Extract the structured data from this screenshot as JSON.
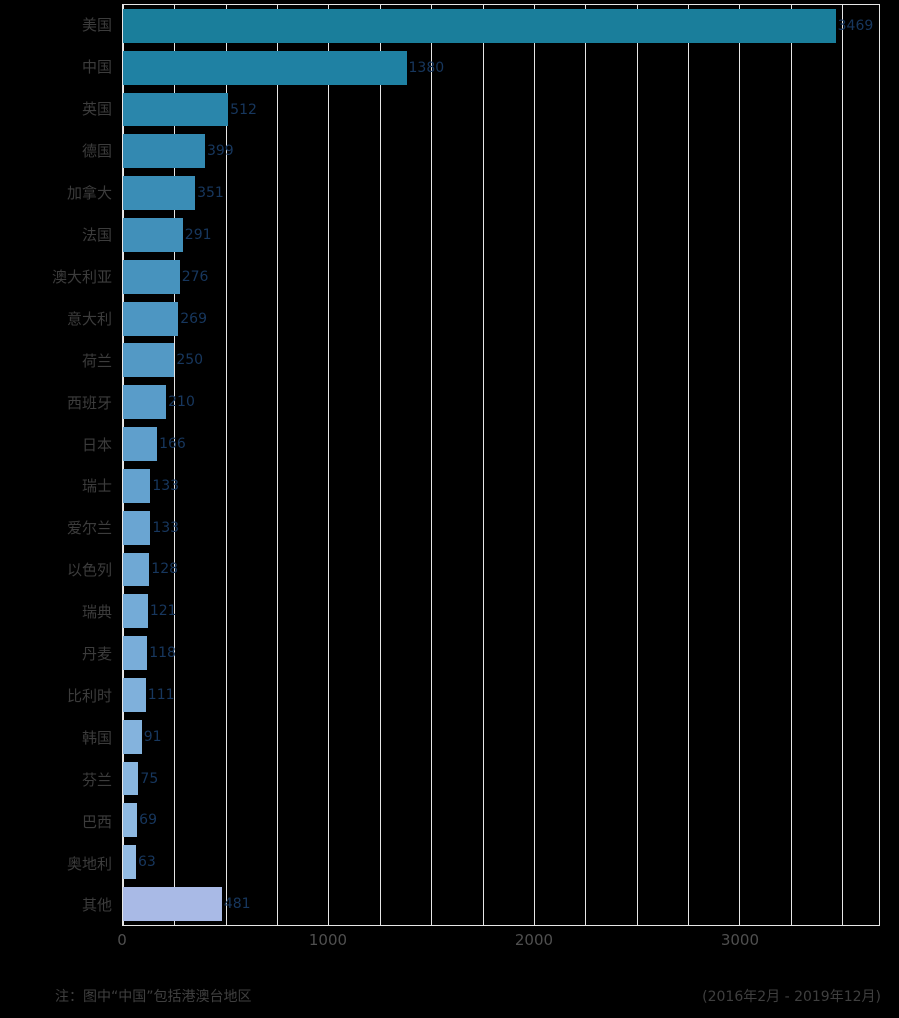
{
  "chart_data": {
    "type": "bar",
    "orientation": "horizontal",
    "title": "",
    "xlabel": "",
    "ylabel": "",
    "grid": true,
    "xlim": [
      0,
      3680
    ],
    "x_major_ticks": [
      "0",
      "1000",
      "2000",
      "3000"
    ],
    "x_major_tick_values": [
      0,
      1000,
      2000,
      3000
    ],
    "x_minor_step": 250,
    "categories": [
      "美国",
      "中国",
      "英国",
      "德国",
      "加拿大",
      "法国",
      "澳大利亚",
      "意大利",
      "荷兰",
      "西班牙",
      "日本",
      "瑞士",
      "爱尔兰",
      "以色列",
      "瑞典",
      "丹麦",
      "比利时",
      "韩国",
      "芬兰",
      "巴西",
      "奥地利",
      "其他"
    ],
    "values": [
      3469,
      1380,
      512,
      399,
      351,
      291,
      276,
      269,
      250,
      210,
      166,
      133,
      133,
      128,
      121,
      118,
      111,
      91,
      75,
      69,
      63,
      481
    ],
    "bar_colors": [
      "#1A7E9B",
      "#1F81A3",
      "#2A86AB",
      "#3389B1",
      "#3A8DB6",
      "#4190BA",
      "#4793BE",
      "#4D96C2",
      "#5399C5",
      "#599CC9",
      "#5F9FCC",
      "#64A2CF",
      "#6AA5D2",
      "#6FA8D4",
      "#74ABD7",
      "#79ADD9",
      "#7FB0DB",
      "#84B3DD",
      "#89B6DF",
      "#8EB9E1",
      "#93BBE3",
      "#A9BAE6"
    ]
  },
  "notes": {
    "left": "注：图中“中国”包括港澳台地区",
    "right": "(2016年2月 - 2019年12月)"
  },
  "colors": {
    "background": "#000000",
    "grid": "#E6E6E6",
    "category_label": "#3C3C3C",
    "tick_label": "#4F4F4F",
    "value_label": "#17375E",
    "note": "#3F3F3F"
  }
}
